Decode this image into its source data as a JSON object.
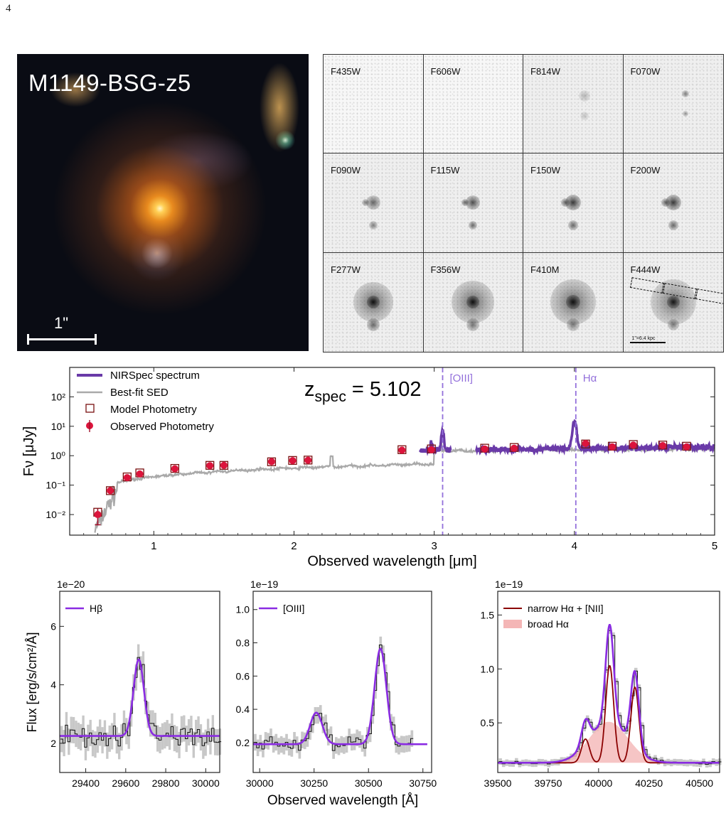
{
  "page_number": "4",
  "rgb_image": {
    "title": "M1149-BSG-z5",
    "scale_label": "1\""
  },
  "stamps": {
    "filters": [
      "F435W",
      "F606W",
      "F814W",
      "F070W",
      "F090W",
      "F115W",
      "F150W",
      "F200W",
      "F277W",
      "F356W",
      "F410M",
      "F444W"
    ],
    "kpc_label": "1\"=6.4 kpc"
  },
  "chart_data": [
    {
      "type": "line",
      "name": "sed",
      "xlabel": "Observed wavelength [μm]",
      "ylabel": "Fν [μJy]",
      "xlim": [
        0.4,
        5.0
      ],
      "ylim": [
        0.002,
        1000
      ],
      "yscale": "log",
      "x_ticks": [
        1,
        2,
        3,
        4,
        5
      ],
      "y_ticks": [
        0.01,
        0.1,
        1,
        10,
        100
      ],
      "y_tick_labels": [
        "10⁻²",
        "10⁻¹",
        "10⁰",
        "10¹",
        "10²"
      ],
      "annotation": "z_spec = 5.102",
      "lines": [
        {
          "label": "[OIII]",
          "x": 3.06,
          "color": "#9370db"
        },
        {
          "label": "Hα",
          "x": 4.01,
          "color": "#9370db"
        }
      ],
      "legend": [
        "NIRSpec spectrum",
        "Best-fit SED",
        "Model Photometry",
        "Observed Photometry"
      ],
      "legend_position": "upper-left",
      "colors": {
        "spectrum": "#6a3aa8",
        "sed": "#a9a9a9",
        "model": "#7a1010",
        "observed": "#dc143c"
      },
      "observed_photometry": {
        "x": [
          0.6,
          0.69,
          0.81,
          0.9,
          1.15,
          1.4,
          1.5,
          1.84,
          1.99,
          2.1,
          2.77,
          2.98,
          3.36,
          3.57,
          4.08,
          4.27,
          4.42,
          4.63,
          4.8
        ],
        "y": [
          0.01,
          0.065,
          0.18,
          0.24,
          0.36,
          0.46,
          0.47,
          0.63,
          0.68,
          0.7,
          1.55,
          1.6,
          1.7,
          1.8,
          2.6,
          2.0,
          2.3,
          2.2,
          2.0
        ]
      },
      "model_photometry": {
        "x": [
          0.6,
          0.69,
          0.81,
          0.9,
          1.15,
          1.4,
          1.5,
          1.84,
          1.99,
          2.1,
          2.77,
          2.98,
          3.36,
          3.57,
          4.08,
          4.27,
          4.42,
          4.63,
          4.8
        ],
        "y": [
          0.012,
          0.065,
          0.19,
          0.26,
          0.37,
          0.47,
          0.47,
          0.62,
          0.69,
          0.71,
          1.6,
          1.7,
          1.8,
          1.9,
          2.5,
          2.1,
          2.4,
          2.3,
          2.1
        ]
      }
    },
    {
      "type": "line",
      "name": "hbeta",
      "multiplier": "1e−20",
      "xlim": [
        29270,
        30070
      ],
      "ylim": [
        1.0,
        7.2
      ],
      "x_ticks": [
        29400,
        29600,
        29800,
        30000
      ],
      "y_ticks": [
        2,
        4,
        6
      ],
      "legend": [
        "Hβ"
      ],
      "fit": {
        "continuum": 2.25,
        "amplitude": 2.62,
        "center": 29665,
        "sigma": 26
      }
    },
    {
      "type": "line",
      "name": "oiii",
      "multiplier": "1e−19",
      "xlim": [
        29970,
        30790
      ],
      "ylim": [
        0.02,
        1.11
      ],
      "x_ticks": [
        30000,
        30250,
        30500,
        30750
      ],
      "y_ticks": [
        0.2,
        0.4,
        0.6,
        0.8,
        1.0
      ],
      "legend": [
        "[OIII]"
      ],
      "fit": {
        "continuum": 0.19,
        "lines": [
          {
            "center": 30260,
            "amplitude": 0.19,
            "sigma": 28
          },
          {
            "center": 30555,
            "amplitude": 0.575,
            "sigma": 27
          }
        ]
      }
    },
    {
      "type": "line",
      "name": "halpha",
      "multiplier": "1e−19",
      "xlabel": "Observed wavelength [Å]",
      "xlim": [
        39500,
        40600
      ],
      "ylim": [
        0.04,
        1.72
      ],
      "x_ticks": [
        39500,
        39750,
        40000,
        40250,
        40500
      ],
      "y_ticks": [
        0.5,
        1.0,
        1.5
      ],
      "legend": [
        "narrow Hα + [NII]",
        "broad Hα"
      ],
      "colors": {
        "narrow": "#8b0000",
        "broad": "#f4b6b6",
        "total": "#8a2be2"
      },
      "fit": {
        "continuum": 0.13,
        "narrow": [
          {
            "center": 40055,
            "amplitude": 0.9,
            "sigma": 20
          },
          {
            "center": 40180,
            "amplitude": 0.7,
            "sigma": 20
          },
          {
            "center": 39935,
            "amplitude": 0.22,
            "sigma": 20
          }
        ],
        "broad": {
          "center": 40050,
          "amplitude": 0.38,
          "sigma": 95
        }
      }
    }
  ],
  "shared_ylabel": "Flux [erg/s/cm²/Å]"
}
